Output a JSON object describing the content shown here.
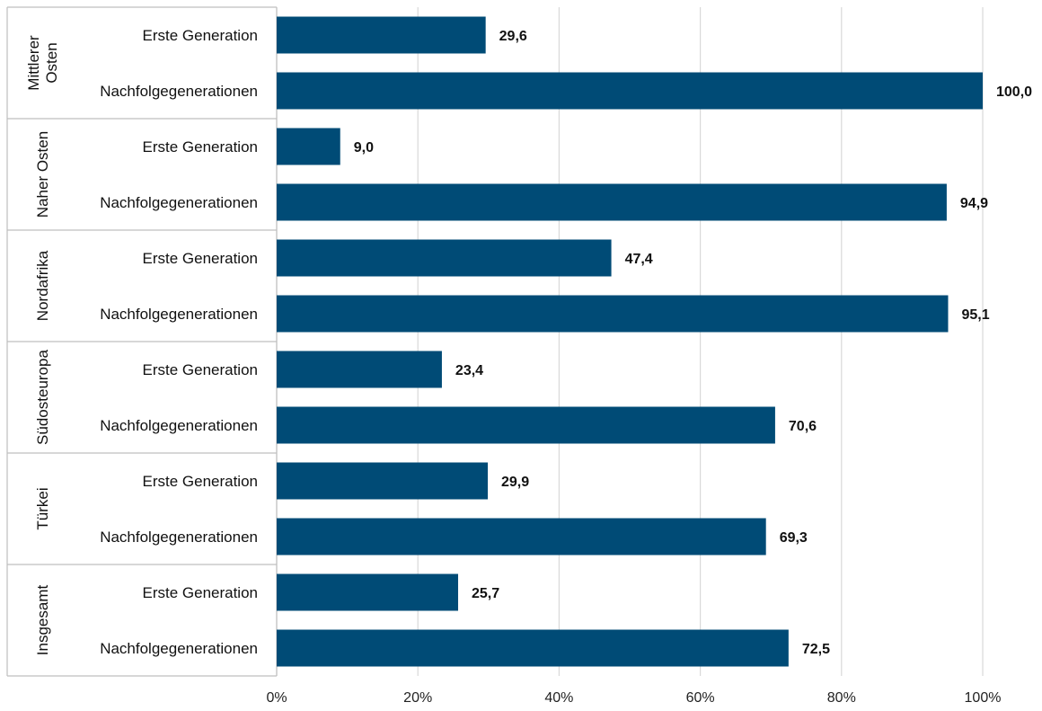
{
  "chart_data": {
    "type": "bar",
    "orientation": "horizontal",
    "title": "",
    "xlabel": "",
    "ylabel": "",
    "xlim": [
      0,
      100
    ],
    "grid": "vertical",
    "x_ticks": [
      "0%",
      "20%",
      "40%",
      "60%",
      "80%",
      "100%"
    ],
    "bar_color": "#004b76",
    "groups": [
      {
        "label": [
          "Mittlerer",
          "Osten"
        ],
        "rows": [
          {
            "category": "Erste Generation",
            "value": 29.6,
            "value_label": "29,6"
          },
          {
            "category": "Nachfolgegenerationen",
            "value": 100.0,
            "value_label": "100,0"
          }
        ]
      },
      {
        "label": [
          "Naher Osten"
        ],
        "rows": [
          {
            "category": "Erste Generation",
            "value": 9.0,
            "value_label": "9,0"
          },
          {
            "category": "Nachfolgegenerationen",
            "value": 94.9,
            "value_label": "94,9"
          }
        ]
      },
      {
        "label": [
          "Nordafrika"
        ],
        "rows": [
          {
            "category": "Erste Generation",
            "value": 47.4,
            "value_label": "47,4"
          },
          {
            "category": "Nachfolgegenerationen",
            "value": 95.1,
            "value_label": "95,1"
          }
        ]
      },
      {
        "label": [
          "Südosteuropa"
        ],
        "rows": [
          {
            "category": "Erste Generation",
            "value": 23.4,
            "value_label": "23,4"
          },
          {
            "category": "Nachfolgegenerationen",
            "value": 70.6,
            "value_label": "70,6"
          }
        ]
      },
      {
        "label": [
          "Türkei"
        ],
        "rows": [
          {
            "category": "Erste Generation",
            "value": 29.9,
            "value_label": "29,9"
          },
          {
            "category": "Nachfolgegenerationen",
            "value": 69.3,
            "value_label": "69,3"
          }
        ]
      },
      {
        "label": [
          "Insgesamt"
        ],
        "rows": [
          {
            "category": "Erste Generation",
            "value": 25.7,
            "value_label": "25,7"
          },
          {
            "category": "Nachfolgegenerationen",
            "value": 72.5,
            "value_label": "72,5"
          }
        ]
      }
    ]
  }
}
